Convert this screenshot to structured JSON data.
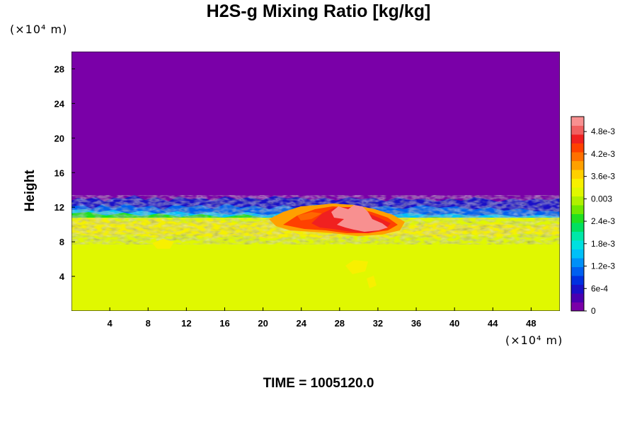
{
  "chart_data": {
    "type": "heatmap",
    "title": "H2S-g Mixing Ratio [kg/kg]",
    "ylabel": "Height",
    "xlabel": "",
    "x_unit": "(×10⁴ m)",
    "y_unit": "(×10⁴ m)",
    "time_label": "TIME = 1005120.0",
    "xlim": [
      0,
      51
    ],
    "ylim": [
      0,
      30
    ],
    "x_ticks": [
      4,
      8,
      12,
      16,
      20,
      24,
      28,
      32,
      36,
      40,
      44,
      48
    ],
    "y_ticks": [
      4,
      8,
      12,
      16,
      20,
      24,
      28
    ],
    "colorbar": {
      "min": 0,
      "max": 0.0052,
      "tick_labels": [
        "4.8e-3",
        "4.2e-3",
        "3.6e-3",
        "0.003",
        "2.4e-3",
        "1.8e-3",
        "1.2e-3",
        "6e-4",
        "0"
      ],
      "tick_values": [
        0.0048,
        0.0042,
        0.0036,
        0.003,
        0.0024,
        0.0018,
        0.0012,
        0.0006,
        0
      ],
      "colors": [
        "#7a00a8",
        "#4a00b0",
        "#1a10c8",
        "#0030e0",
        "#0060f0",
        "#0090f8",
        "#00c0f8",
        "#00e0e0",
        "#00e8a8",
        "#00e060",
        "#20e020",
        "#70e800",
        "#b0f000",
        "#e0f800",
        "#f8f000",
        "#ffd000",
        "#ffa000",
        "#ff7000",
        "#ff4000",
        "#f02020",
        "#f06060",
        "#f89090"
      ]
    },
    "regions": [
      {
        "name": "upper layer",
        "y_range": [
          12.5,
          30
        ],
        "value": 0
      },
      {
        "name": "lower layer",
        "y_range": [
          0,
          9
        ],
        "value": 0.0036
      },
      {
        "name": "plume maximum",
        "x_range": [
          27,
          34
        ],
        "y_range": [
          9.5,
          12
        ],
        "value": 0.0052
      }
    ]
  }
}
